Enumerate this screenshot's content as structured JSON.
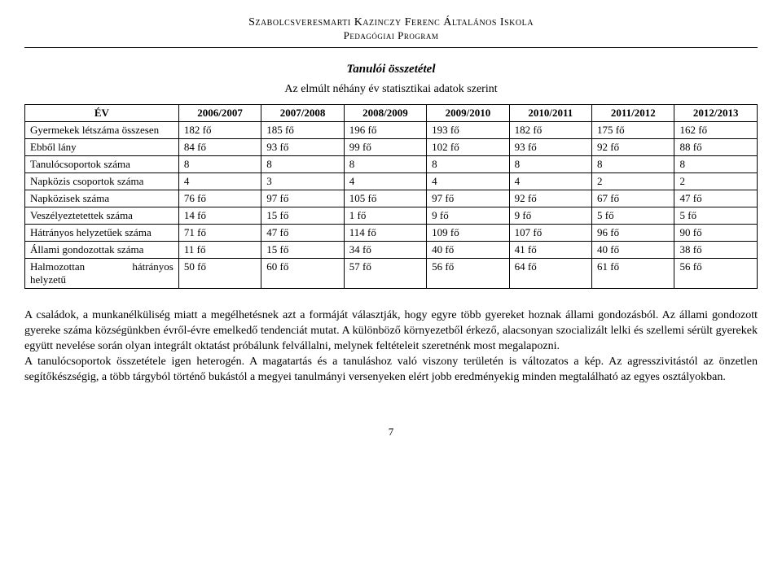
{
  "header": {
    "school": "Szabolcsveresmarti Kazinczy Ferenc Általános Iskola",
    "program": "Pedagógiai Program"
  },
  "titles": {
    "subtitle": "Tanulói összetétel",
    "subcaption": "Az elmúlt néhány év statisztikai adatok szerint"
  },
  "table": {
    "header_first": "ÉV",
    "years": [
      "2006/2007",
      "2007/2008",
      "2008/2009",
      "2009/2010",
      "2010/2011",
      "2011/2012",
      "2012/2013"
    ],
    "rows": [
      {
        "label": "Gyermekek létszáma összesen",
        "cells": [
          "182 fő",
          "185 fő",
          "196 fő",
          "193 fő",
          "182 fő",
          "175 fő",
          "162 fő"
        ]
      },
      {
        "label": "Ebből lány",
        "cells": [
          "84 fő",
          "93 fő",
          "99 fő",
          "102 fő",
          "93 fő",
          "92 fő",
          "88 fő"
        ]
      },
      {
        "label": "Tanulócsoportok száma",
        "cells": [
          "8",
          "8",
          "8",
          "8",
          "8",
          "8",
          "8"
        ]
      },
      {
        "label": "Napközis csoportok száma",
        "cells": [
          "4",
          "3",
          "4",
          "4",
          "4",
          "2",
          "2"
        ]
      },
      {
        "label": "Napközisek száma",
        "cells": [
          "76 fő",
          "97 fő",
          "105 fő",
          "97 fő",
          "92 fő",
          "67 fő",
          "47 fő"
        ]
      },
      {
        "label": "Veszélyeztetettek száma",
        "cells": [
          "14 fő",
          "15 fő",
          "1 fő",
          "9 fő",
          "9 fő",
          "5 fő",
          "5 fő"
        ]
      },
      {
        "label": "Hátrányos helyzetűek száma",
        "cells": [
          "71 fő",
          "47 fő",
          "114 fő",
          "109 fő",
          "107 fő",
          "96 fő",
          "90 fő"
        ]
      },
      {
        "label": "Állami gondozottak száma",
        "cells": [
          "11 fő",
          "15 fő",
          "34 fő",
          "40 fő",
          "41 fő",
          "40 fő",
          "38 fő"
        ]
      }
    ],
    "last_row": {
      "label_left": "Halmozottan",
      "label_right": "hátrányos",
      "label_below": "helyzetű",
      "cells": [
        "50 fő",
        "60 fő",
        "57 fő",
        "56 fő",
        "64 fő",
        "61 fő",
        "56 fő"
      ]
    }
  },
  "paragraphs": {
    "p1": "A családok, a munkanélküliség miatt a megélhetésnek azt a formáját választják, hogy egyre több gyereket hoznak állami gondozásból. Az állami gondozott gyereke száma községünkben évről-évre emelkedő tendenciát mutat. A különböző környezetből érkező, alacsonyan szocializált lelki és szellemi sérült gyerekek együtt nevelése során olyan integrált oktatást próbálunk felvállalni, melynek feltételeit szeretnénk most megalapozni.",
    "p2": "A tanulócsoportok összetétele igen heterogén. A magatartás és a tanuláshoz való viszony területén is változatos a kép. Az agresszivitástól az önzetlen segítőkészségig, a több tárgyból történő bukástól a megyei tanulmányi versenyeken elért jobb eredményekig minden megtalálható az egyes osztályokban."
  },
  "page_number": "7"
}
